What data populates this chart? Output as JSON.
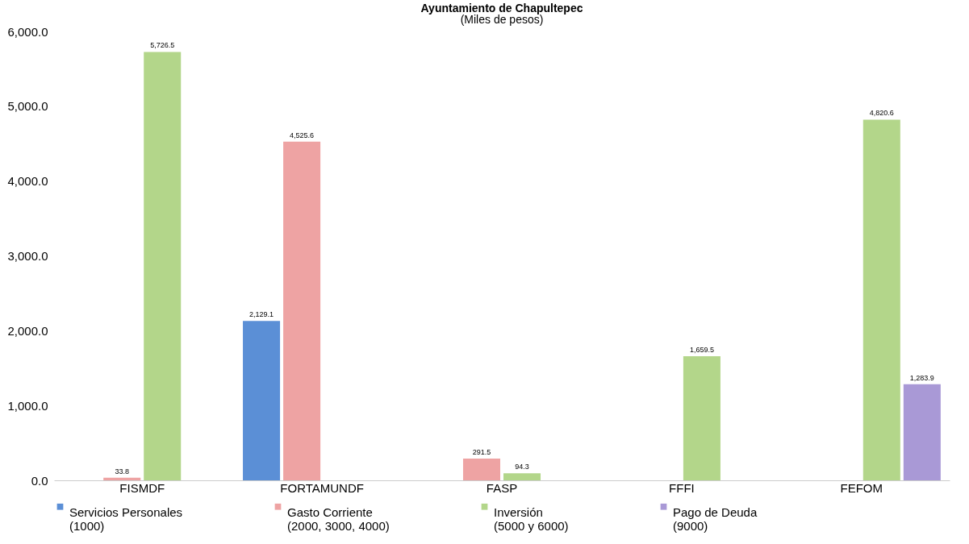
{
  "chart_data": {
    "type": "bar",
    "title": "Ayuntamiento de Chapultepec",
    "subtitle": "(Miles de pesos)",
    "categories": [
      "FISMDF",
      "FORTAMUNDF",
      "FASP",
      "FFFI",
      "FEFOM"
    ],
    "series": [
      {
        "name": "Servicios Personales\n(1000)",
        "color": "#5b8fd6",
        "values": [
          0,
          2129.1,
          0,
          0,
          0
        ],
        "value_labels": [
          null,
          "2,129.1",
          null,
          null,
          null
        ]
      },
      {
        "name": "Gasto Corriente\n(2000, 3000, 4000)",
        "color": "#eea3a3",
        "values": [
          33.8,
          4525.6,
          291.5,
          0,
          0
        ],
        "value_labels": [
          "33.8",
          "4,525.6",
          "291.5",
          null,
          null
        ]
      },
      {
        "name": "Inversión\n(5000 y 6000)",
        "color": "#b3d68a",
        "values": [
          5726.5,
          0,
          94.3,
          1659.5,
          4820.6
        ],
        "value_labels": [
          "5,726.5",
          null,
          "94.3",
          "1,659.5",
          "4,820.6"
        ]
      },
      {
        "name": "Pago de Deuda\n(9000)",
        "color": "#a999d6",
        "values": [
          0,
          0,
          0,
          0,
          1283.9
        ],
        "value_labels": [
          null,
          null,
          null,
          null,
          "1,283.9"
        ]
      }
    ],
    "ylim": [
      0,
      6000
    ],
    "yticks": [
      {
        "value": 0,
        "label": "0.0"
      },
      {
        "value": 1000,
        "label": "1,000.0"
      },
      {
        "value": 2000,
        "label": "2,000.0"
      },
      {
        "value": 3000,
        "label": "3,000.0"
      },
      {
        "value": 4000,
        "label": "4,000.0"
      },
      {
        "value": 5000,
        "label": "5,000.0"
      },
      {
        "value": 6000,
        "label": "6,000.0"
      }
    ],
    "grid": false,
    "legend": "bottom"
  }
}
